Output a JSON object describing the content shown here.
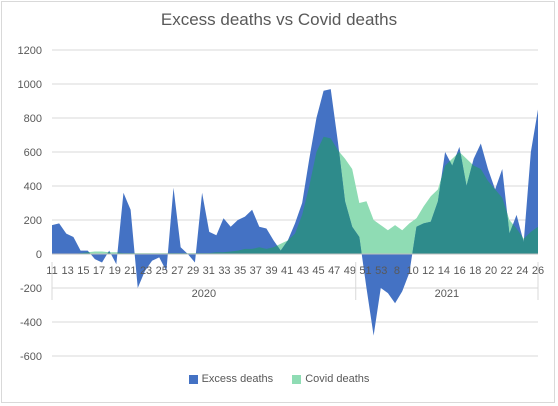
{
  "chart_data": {
    "type": "area",
    "title": "Excess deaths vs Covid deaths",
    "y_ticks": [
      "1200",
      "1000",
      "800",
      "600",
      "400",
      "200",
      "0",
      "-200",
      "-400",
      "-600"
    ],
    "ylim": [
      -600,
      1200
    ],
    "x_tick_labels": [
      "11",
      "13",
      "15",
      "17",
      "19",
      "21",
      "23",
      "25",
      "27",
      "29",
      "31",
      "33",
      "35",
      "37",
      "39",
      "41",
      "43",
      "45",
      "47",
      "49",
      "51",
      "53",
      "8",
      "10",
      "12",
      "14",
      "16",
      "18",
      "20",
      "22",
      "24",
      "26"
    ],
    "year_labels": [
      "2020",
      "2021"
    ],
    "legend_position": "bottom",
    "colors": {
      "excess": "#4472c4",
      "covid": "#8fdcb4",
      "overlap": "#2e8b8b"
    },
    "series": [
      {
        "name": "Excess deaths",
        "x": [
          "2020-W11",
          "2020-W12",
          "2020-W13",
          "2020-W14",
          "2020-W15",
          "2020-W16",
          "2020-W17",
          "2020-W18",
          "2020-W19",
          "2020-W20",
          "2020-W21",
          "2020-W22",
          "2020-W23",
          "2020-W24",
          "2020-W25",
          "2020-W26",
          "2020-W27",
          "2020-W28",
          "2020-W29",
          "2020-W30",
          "2020-W31",
          "2020-W32",
          "2020-W33",
          "2020-W34",
          "2020-W35",
          "2020-W36",
          "2020-W37",
          "2020-W38",
          "2020-W39",
          "2020-W40",
          "2020-W41",
          "2020-W42",
          "2020-W43",
          "2020-W44",
          "2020-W45",
          "2020-W46",
          "2020-W47",
          "2020-W48",
          "2020-W49",
          "2020-W50",
          "2020-W51",
          "2020-W52",
          "2020-W53",
          "2021-W01",
          "2021-W02",
          "2021-W03",
          "2021-W04",
          "2021-W05",
          "2021-W06",
          "2021-W07",
          "2021-W08",
          "2021-W09",
          "2021-W10",
          "2021-W11",
          "2021-W12",
          "2021-W13",
          "2021-W14",
          "2021-W15",
          "2021-W16",
          "2021-W17",
          "2021-W18",
          "2021-W19",
          "2021-W20",
          "2021-W21",
          "2021-W22",
          "2021-W23",
          "2021-W24",
          "2021-W25",
          "2021-W26"
        ],
        "values": [
          170,
          180,
          120,
          100,
          20,
          20,
          -30,
          -50,
          20,
          -60,
          360,
          260,
          -200,
          -100,
          -40,
          -20,
          -100,
          390,
          40,
          0,
          -50,
          360,
          130,
          110,
          210,
          160,
          200,
          220,
          260,
          160,
          150,
          80,
          20,
          80,
          180,
          300,
          560,
          800,
          960,
          970,
          660,
          310,
          160,
          100,
          -200,
          -480,
          -200,
          -230,
          -290,
          -220,
          -110,
          160,
          180,
          190,
          310,
          600,
          520,
          630,
          400,
          560,
          650,
          500,
          380,
          500,
          120,
          230,
          70,
          600,
          850
        ]
      },
      {
        "name": "Covid deaths",
        "x": [
          "2020-W11",
          "2020-W12",
          "2020-W13",
          "2020-W14",
          "2020-W15",
          "2020-W16",
          "2020-W17",
          "2020-W18",
          "2020-W19",
          "2020-W20",
          "2020-W21",
          "2020-W22",
          "2020-W23",
          "2020-W24",
          "2020-W25",
          "2020-W26",
          "2020-W27",
          "2020-W28",
          "2020-W29",
          "2020-W30",
          "2020-W31",
          "2020-W32",
          "2020-W33",
          "2020-W34",
          "2020-W35",
          "2020-W36",
          "2020-W37",
          "2020-W38",
          "2020-W39",
          "2020-W40",
          "2020-W41",
          "2020-W42",
          "2020-W43",
          "2020-W44",
          "2020-W45",
          "2020-W46",
          "2020-W47",
          "2020-W48",
          "2020-W49",
          "2020-W50",
          "2020-W51",
          "2020-W52",
          "2020-W53",
          "2021-W01",
          "2021-W02",
          "2021-W03",
          "2021-W04",
          "2021-W05",
          "2021-W06",
          "2021-W07",
          "2021-W08",
          "2021-W09",
          "2021-W10",
          "2021-W11",
          "2021-W12",
          "2021-W13",
          "2021-W14",
          "2021-W15",
          "2021-W16",
          "2021-W17",
          "2021-W18",
          "2021-W19",
          "2021-W20",
          "2021-W21",
          "2021-W22",
          "2021-W23",
          "2021-W24",
          "2021-W25",
          "2021-W26"
        ],
        "values": [
          0,
          0,
          0,
          0,
          5,
          10,
          15,
          15,
          10,
          10,
          5,
          5,
          5,
          5,
          5,
          5,
          5,
          5,
          5,
          5,
          5,
          5,
          5,
          10,
          10,
          15,
          20,
          30,
          30,
          40,
          30,
          40,
          60,
          80,
          120,
          230,
          400,
          600,
          690,
          680,
          610,
          560,
          500,
          300,
          310,
          200,
          170,
          140,
          170,
          140,
          180,
          210,
          280,
          340,
          380,
          520,
          560,
          600,
          560,
          520,
          500,
          430,
          380,
          330,
          200,
          150,
          90,
          130,
          160
        ]
      }
    ]
  }
}
